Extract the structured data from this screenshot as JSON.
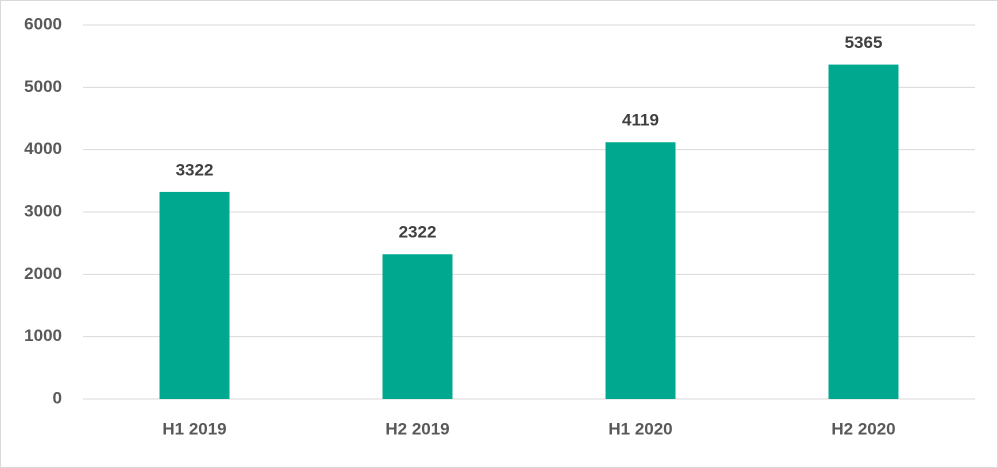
{
  "chart_data": {
    "type": "bar",
    "categories": [
      "H1 2019",
      "H2 2019",
      "H1 2020",
      "H2 2020"
    ],
    "values": [
      3322,
      2322,
      4119,
      5365
    ],
    "color": "#00a88f",
    "ylim": [
      0,
      6000
    ],
    "yticks": [
      0,
      1000,
      2000,
      3000,
      4000,
      5000,
      6000
    ],
    "grid": true
  }
}
